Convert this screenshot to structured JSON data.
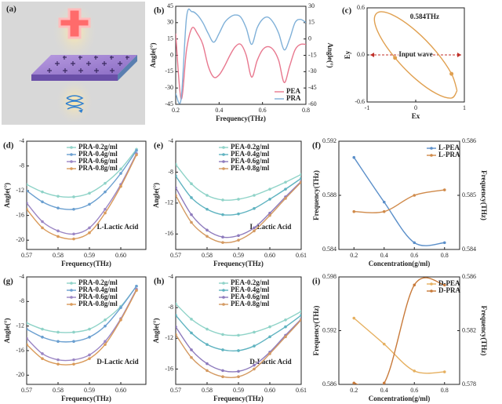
{
  "illustration": {
    "label": "(a)"
  },
  "chart_data": [
    {
      "type": "line",
      "panel": "(b)",
      "xlabel": "Frequency(THz)",
      "ylabel": "Angle(°)",
      "y2label": "Angle(°)",
      "x": [
        0.2,
        0.225,
        0.25,
        0.275,
        0.3,
        0.325,
        0.35,
        0.375,
        0.4,
        0.425,
        0.45,
        0.475,
        0.5,
        0.525,
        0.55,
        0.575,
        0.6,
        0.625,
        0.65,
        0.675,
        0.7,
        0.725,
        0.75,
        0.775,
        0.8
      ],
      "series": [
        {
          "name": "PEA",
          "color": "#e8788f",
          "values": [
            20,
            -40,
            5,
            25,
            20,
            10,
            -10,
            -20,
            -18,
            -10,
            0,
            8,
            10,
            0,
            -20,
            -5,
            5,
            8,
            5,
            -5,
            -25,
            -10,
            5,
            10,
            10
          ]
        },
        {
          "name": "PRA",
          "color": "#7fb0d8",
          "axis": "y2",
          "values": [
            -50,
            -55,
            20,
            25,
            22,
            15,
            5,
            -3,
            5,
            15,
            20,
            22,
            20,
            10,
            -5,
            10,
            18,
            20,
            15,
            5,
            -10,
            0,
            15,
            18,
            15
          ]
        }
      ],
      "xlim": [
        0.2,
        0.8
      ],
      "xticks": [
        0.2,
        0.4,
        0.6,
        0.8
      ],
      "ylim": [
        -45,
        45
      ],
      "yticks": [
        -45,
        -30,
        -15,
        0,
        15,
        30,
        45
      ],
      "y2lim": [
        -60,
        30
      ],
      "y2ticks": [
        -60,
        -45,
        -30,
        -15,
        0,
        15,
        30
      ],
      "legend": "lower right",
      "markers": false
    },
    {
      "type": "line",
      "panel": "(c)",
      "xlabel": "Ex",
      "ylabel": "Ey",
      "x": [
        0.85,
        0.736,
        0.425,
        0,
        -0.425,
        -0.736,
        -0.85,
        -0.736,
        -0.425,
        0,
        0.425,
        0.736,
        0.85
      ],
      "series": [
        {
          "color": "#e0a050",
          "values": [
            -0.456,
            -0.549,
            -0.494,
            -0.308,
            -0.038,
            0.241,
            0.456,
            0.549,
            0.494,
            0.308,
            0.038,
            -0.241,
            -0.456
          ]
        }
      ],
      "xlim": [
        -1,
        1
      ],
      "xticks": [
        -1,
        0,
        1
      ],
      "ylim": [
        -0.6,
        0.6
      ],
      "yticks": [
        -0.6,
        {
          "value": 0,
          "label": "0.0"
        },
        0.6
      ],
      "annotations": [
        "0.584THz",
        "Input wave"
      ],
      "markers": false
    },
    {
      "type": "line",
      "panel": "(d)",
      "xlabel": "Frequency(THz)",
      "ylabel": "Angle(°)",
      "x": [
        0.57,
        0.575,
        0.58,
        0.585,
        0.59,
        0.595,
        0.6,
        0.605
      ],
      "series": [
        {
          "name": "PRA-0.2g/ml",
          "color": "#8fd3c8",
          "values": [
            -11,
            -12.2,
            -12.9,
            -13,
            -12.4,
            -10.8,
            -8.5,
            -5.3
          ]
        },
        {
          "name": "PRA-0.4g/ml",
          "color": "#6a9fd0",
          "values": [
            -12,
            -13.8,
            -14.8,
            -15,
            -14.2,
            -12.2,
            -9.2,
            -5.5
          ]
        },
        {
          "name": "PRA-0.6g/ml",
          "color": "#9b86c4",
          "values": [
            -14,
            -17,
            -18.5,
            -19,
            -18,
            -15,
            -11,
            -6
          ]
        },
        {
          "name": "PRA-0.8g/ml",
          "color": "#d99a5a",
          "values": [
            -15,
            -18,
            -19.4,
            -19.8,
            -18.8,
            -15.6,
            -11.3,
            -6.2
          ]
        }
      ],
      "xlim": [
        0.57,
        0.608
      ],
      "xticks": [
        0.57,
        0.58,
        0.59,
        {
          "value": 0.6,
          "label": "0.60"
        }
      ],
      "ylim": [
        -21.5,
        -4
      ],
      "yticks": [
        -4,
        -8,
        -12,
        -16,
        -20
      ],
      "annotations": [
        "L-Lactic Acid"
      ],
      "legend": "upper center",
      "markers": true
    },
    {
      "type": "line",
      "panel": "(e)",
      "xlabel": "Frequency(THz)",
      "ylabel": "Angle(°)",
      "x": [
        0.57,
        0.575,
        0.58,
        0.585,
        0.59,
        0.595,
        0.6,
        0.605,
        0.61
      ],
      "series": [
        {
          "name": "PEA-0.2g/ml",
          "color": "#8fd3c8",
          "values": [
            -7,
            -9.5,
            -11,
            -11.6,
            -11.5,
            -11,
            -10.2,
            -9.3,
            -8.3
          ]
        },
        {
          "name": "PEA-0.4g/ml",
          "color": "#5fb3c0",
          "values": [
            -8.5,
            -11.3,
            -12.8,
            -13.5,
            -13.4,
            -12.7,
            -11.5,
            -10.2,
            -8.8
          ]
        },
        {
          "name": "PEA-0.6g/ml",
          "color": "#8e7bbd",
          "values": [
            -10,
            -13.5,
            -15.5,
            -16.4,
            -16.2,
            -15.2,
            -13.3,
            -11.2,
            -9.2
          ]
        },
        {
          "name": "PEA-0.8g/ml",
          "color": "#d49a62",
          "values": [
            -11,
            -14.5,
            -16.3,
            -17.1,
            -16.8,
            -15.6,
            -13.6,
            -11.4,
            -9.3
          ]
        }
      ],
      "xlim": [
        0.57,
        0.61
      ],
      "xticks": [
        0.57,
        0.58,
        0.59,
        {
          "value": 0.6,
          "label": "0.60"
        },
        0.61
      ],
      "ylim": [
        -18,
        -4
      ],
      "yticks": [
        -4,
        -8,
        -12,
        -16
      ],
      "annotations": [
        "L-Lactic Acid"
      ],
      "legend": "upper center",
      "markers": true
    },
    {
      "type": "line",
      "panel": "(f)",
      "xlabel": "Concentration(g/ml)",
      "ylabel": "Frequency(THz)",
      "y2label": "Frequency(THz)",
      "x": [
        0.2,
        0.4,
        0.6,
        0.8
      ],
      "series": [
        {
          "name": "L-PEA",
          "color": "#5b8fc9",
          "values": [
            0.5908,
            0.5875,
            0.5845,
            0.5845
          ]
        },
        {
          "name": "L-PRA",
          "color": "#d08a4a",
          "axis": "y2",
          "values": [
            0.5847,
            0.5847,
            0.585,
            0.5851
          ]
        }
      ],
      "xlim": [
        0.1,
        0.9
      ],
      "xticks": [
        0.2,
        0.4,
        0.6,
        0.8
      ],
      "ylim": [
        0.584,
        0.592
      ],
      "yticks": [
        0.584,
        0.588,
        0.592
      ],
      "y2lim": [
        0.584,
        0.586
      ],
      "y2ticks": [
        0.584,
        0.585,
        0.586
      ],
      "legend": "upper right",
      "markers": true
    },
    {
      "type": "line",
      "panel": "(g)",
      "xlabel": "Frequency(THz)",
      "ylabel": "Angle(°)",
      "x": [
        0.57,
        0.575,
        0.58,
        0.585,
        0.59,
        0.595,
        0.6,
        0.605
      ],
      "series": [
        {
          "name": "PRA-0.2g/ml",
          "color": "#8fd3c8",
          "values": [
            -11.5,
            -12.5,
            -13,
            -13,
            -12.5,
            -11,
            -8.8,
            -5.5
          ]
        },
        {
          "name": "PRA-0.4g/ml",
          "color": "#6a9fd0",
          "values": [
            -12.5,
            -13.8,
            -14.5,
            -14.5,
            -13.8,
            -12,
            -9,
            -5.5
          ]
        },
        {
          "name": "PRA-0.6g/ml",
          "color": "#9b86c4",
          "values": [
            -14,
            -16.5,
            -17.5,
            -17.5,
            -16.7,
            -14.5,
            -10.8,
            -6
          ]
        },
        {
          "name": "PRA-0.8g/ml",
          "color": "#d99a5a",
          "values": [
            -15,
            -17.3,
            -18.2,
            -18.2,
            -17.3,
            -15,
            -11,
            -6.2
          ]
        }
      ],
      "xlim": [
        0.57,
        0.608
      ],
      "xticks": [
        0.57,
        0.58,
        0.59,
        {
          "value": 0.6,
          "label": "0.60"
        }
      ],
      "ylim": [
        -21.5,
        -4
      ],
      "yticks": [
        -4,
        -8,
        -12,
        -16,
        -20
      ],
      "annotations": [
        "D-Lactic Acid"
      ],
      "legend": "upper center",
      "markers": true
    },
    {
      "type": "line",
      "panel": "(h)",
      "xlabel": "Frequency(THz)",
      "ylabel": "Angle(°)",
      "x": [
        0.57,
        0.575,
        0.58,
        0.585,
        0.59,
        0.595,
        0.6,
        0.605,
        0.61
      ],
      "series": [
        {
          "name": "PEA-0.2g/ml",
          "color": "#8fd3c8",
          "values": [
            -7.5,
            -9.5,
            -10.8,
            -11.5,
            -11.6,
            -11.2,
            -10.5,
            -9.6,
            -8.5
          ]
        },
        {
          "name": "PEA-0.4g/ml",
          "color": "#5fb3c0",
          "values": [
            -9,
            -11.3,
            -12.8,
            -13.5,
            -13.6,
            -13,
            -11.8,
            -10.5,
            -9
          ]
        },
        {
          "name": "PEA-0.6g/ml",
          "color": "#8e7bbd",
          "values": [
            -10.5,
            -13.5,
            -15.3,
            -16.2,
            -16.3,
            -15.5,
            -13.8,
            -11.6,
            -9.5
          ]
        },
        {
          "name": "PEA-0.8g/ml",
          "color": "#d49a62",
          "values": [
            -11.5,
            -14.5,
            -16.2,
            -17,
            -17,
            -16,
            -14,
            -11.8,
            -9.6
          ]
        }
      ],
      "xlim": [
        0.57,
        0.61
      ],
      "xticks": [
        0.57,
        0.58,
        0.59,
        {
          "value": 0.6,
          "label": "0.60"
        },
        0.61
      ],
      "ylim": [
        -18,
        -4
      ],
      "yticks": [
        -4,
        -8,
        -12,
        -16
      ],
      "annotations": [
        "D-Lactic Acid"
      ],
      "legend": "upper center",
      "markers": true
    },
    {
      "type": "line",
      "panel": "(i)",
      "xlabel": "Concentration(g/ml)",
      "ylabel": "Frequency(THz)",
      "y2label": "Frequency(THz)",
      "x": [
        0.2,
        0.4,
        0.6,
        0.8
      ],
      "series": [
        {
          "name": "D-PEA",
          "color": "#e6b060",
          "values": [
            0.5934,
            0.5905,
            0.5875,
            0.5874
          ]
        },
        {
          "name": "D-PRA",
          "color": "#c87a3a",
          "axis": "y2",
          "values": [
            0.5781,
            0.5781,
            0.5854,
            0.5854
          ]
        }
      ],
      "xlim": [
        0.1,
        0.9
      ],
      "xticks": [
        0.2,
        0.4,
        0.6,
        0.8
      ],
      "ylim": [
        0.586,
        0.598
      ],
      "yticks": [
        0.586,
        0.592,
        0.598
      ],
      "y2lim": [
        0.578,
        0.586
      ],
      "y2ticks": [
        0.578,
        0.582,
        0.586
      ],
      "legend": "upper right",
      "markers": true
    }
  ]
}
